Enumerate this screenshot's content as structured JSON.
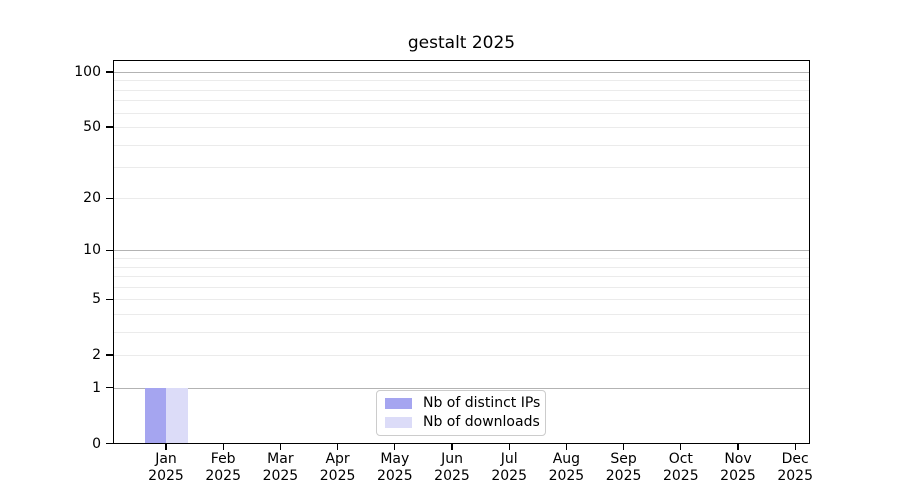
{
  "chart_data": {
    "type": "bar",
    "title": "gestalt 2025",
    "categories": [
      "Jan 2025",
      "Feb 2025",
      "Mar 2025",
      "Apr 2025",
      "May 2025",
      "Jun 2025",
      "Jul 2025",
      "Aug 2025",
      "Sep 2025",
      "Oct 2025",
      "Nov 2025",
      "Dec 2025"
    ],
    "series": [
      {
        "name": "Nb of distinct IPs",
        "color": "#a5a5f0",
        "values": [
          1,
          0,
          0,
          0,
          0,
          0,
          0,
          0,
          0,
          0,
          0,
          0
        ]
      },
      {
        "name": "Nb of downloads",
        "color": "#dcdcf8",
        "values": [
          1,
          0,
          0,
          0,
          0,
          0,
          0,
          0,
          0,
          0,
          0,
          0
        ]
      }
    ],
    "yscale": "log1p",
    "ylim": [
      0,
      116
    ],
    "y_tick_labels": [
      100,
      50,
      20,
      10,
      5,
      2,
      1,
      0
    ],
    "y_major_gridlines": [
      1,
      10,
      100
    ],
    "y_minor_gridlines": [
      2,
      3,
      4,
      5,
      6,
      7,
      8,
      9,
      20,
      30,
      40,
      50,
      60,
      70,
      80,
      90
    ],
    "grid": true,
    "legend_position": "lower center",
    "xlabel": "",
    "ylabel": ""
  },
  "colors": {
    "background": "#ffffff",
    "axis": "#000000",
    "grid_major": "#b3b3b3",
    "grid_minor": "#ebebeb",
    "legend_border": "#cccccc",
    "bar_distinct_ips": "#a5a5f0",
    "bar_downloads": "#dcdcf8"
  }
}
